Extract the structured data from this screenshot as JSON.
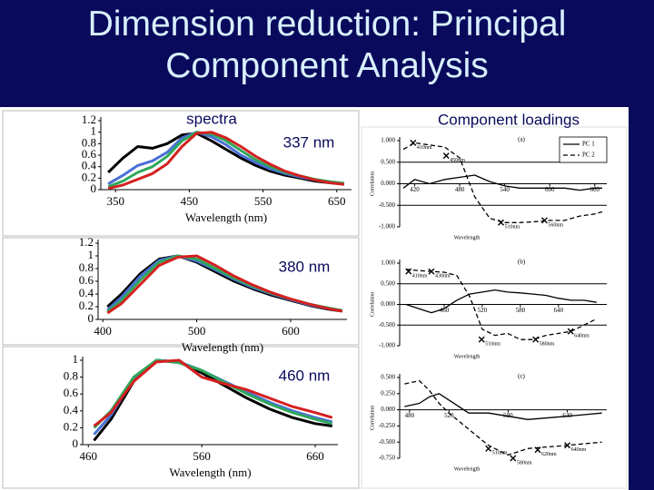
{
  "slide": {
    "title": "Dimension reduction: Principal Component Analysis",
    "labels": [
      "spectra",
      "337 nm",
      "380 nm",
      "460 nm",
      "Component loadings"
    ]
  },
  "chart_data": [
    {
      "type": "line",
      "x": [
        340,
        360,
        380,
        400,
        420,
        440,
        460,
        480,
        500,
        520,
        540,
        560,
        580,
        600,
        620,
        640,
        660
      ],
      "series": [
        {
          "color": "#000000",
          "values": [
            0.3,
            0.55,
            0.75,
            0.72,
            0.8,
            0.95,
            0.98,
            0.85,
            0.7,
            0.55,
            0.42,
            0.32,
            0.25,
            0.2,
            0.15,
            0.12,
            0.1
          ]
        },
        {
          "color": "#4a6fd6",
          "values": [
            0.1,
            0.25,
            0.42,
            0.5,
            0.65,
            0.9,
            1.0,
            0.92,
            0.78,
            0.6,
            0.47,
            0.36,
            0.28,
            0.22,
            0.17,
            0.13,
            0.1
          ]
        },
        {
          "color": "#2ea85a",
          "values": [
            0.05,
            0.15,
            0.3,
            0.4,
            0.58,
            0.85,
            1.0,
            0.97,
            0.85,
            0.68,
            0.52,
            0.4,
            0.3,
            0.24,
            0.18,
            0.14,
            0.11
          ]
        },
        {
          "color": "#d42020",
          "values": [
            0.02,
            0.08,
            0.18,
            0.28,
            0.45,
            0.75,
            0.98,
            1.0,
            0.9,
            0.75,
            0.58,
            0.44,
            0.32,
            0.24,
            0.17,
            0.12,
            0.09
          ]
        }
      ],
      "xlim": [
        330,
        670
      ],
      "ylim": [
        0,
        1.2
      ],
      "xticks": [
        350,
        450,
        550,
        650
      ],
      "yticks": [
        0,
        0.2,
        0.4,
        0.6,
        0.8,
        1,
        1.2
      ],
      "xlabel": "Wavelength (nm)"
    },
    {
      "type": "line",
      "x": [
        405,
        420,
        440,
        460,
        480,
        500,
        520,
        540,
        560,
        580,
        600,
        620,
        640,
        655
      ],
      "series": [
        {
          "color": "#000000",
          "values": [
            0.2,
            0.4,
            0.72,
            0.95,
            1.0,
            0.9,
            0.75,
            0.6,
            0.48,
            0.38,
            0.3,
            0.22,
            0.16,
            0.13
          ]
        },
        {
          "color": "#4a6fd6",
          "values": [
            0.15,
            0.35,
            0.68,
            0.93,
            1.0,
            0.92,
            0.78,
            0.63,
            0.5,
            0.4,
            0.31,
            0.23,
            0.17,
            0.14
          ]
        },
        {
          "color": "#2ea85a",
          "values": [
            0.12,
            0.3,
            0.62,
            0.9,
            1.0,
            0.95,
            0.8,
            0.65,
            0.52,
            0.41,
            0.32,
            0.24,
            0.18,
            0.14
          ]
        },
        {
          "color": "#d42020",
          "values": [
            0.1,
            0.25,
            0.55,
            0.85,
            0.98,
            1.0,
            0.85,
            0.68,
            0.54,
            0.42,
            0.32,
            0.24,
            0.17,
            0.13
          ]
        }
      ],
      "xlim": [
        395,
        660
      ],
      "ylim": [
        0,
        1.2
      ],
      "xticks": [
        400,
        500,
        600
      ],
      "yticks": [
        0,
        0.2,
        0.4,
        0.6,
        0.8,
        1,
        1.2
      ],
      "xlabel": "Wavelength (nm)"
    },
    {
      "type": "line",
      "x": [
        465,
        480,
        500,
        520,
        540,
        560,
        580,
        600,
        620,
        640,
        660,
        675
      ],
      "series": [
        {
          "color": "#000000",
          "values": [
            0.05,
            0.3,
            0.75,
            1.0,
            0.98,
            0.85,
            0.7,
            0.55,
            0.42,
            0.32,
            0.25,
            0.22
          ]
        },
        {
          "color": "#4a6fd6",
          "values": [
            0.12,
            0.35,
            0.78,
            1.0,
            0.98,
            0.88,
            0.75,
            0.62,
            0.5,
            0.4,
            0.32,
            0.27
          ]
        },
        {
          "color": "#2ea85a",
          "values": [
            0.2,
            0.4,
            0.8,
            1.0,
            0.97,
            0.88,
            0.74,
            0.6,
            0.48,
            0.38,
            0.3,
            0.25
          ]
        },
        {
          "color": "#d42020",
          "values": [
            0.22,
            0.38,
            0.75,
            0.98,
            1.0,
            0.8,
            0.72,
            0.65,
            0.55,
            0.45,
            0.38,
            0.32
          ]
        }
      ],
      "xlim": [
        455,
        680
      ],
      "ylim": [
        0,
        1
      ],
      "xticks": [
        460,
        560,
        660
      ],
      "yticks": [
        0,
        0.2,
        0.4,
        0.6,
        0.8,
        1
      ],
      "xlabel": "Wavelength (nm)"
    },
    {
      "type": "line",
      "title": "(a)",
      "x": [
        405,
        420,
        440,
        460,
        480,
        500,
        520,
        540,
        560,
        580,
        600,
        620,
        640,
        660,
        670
      ],
      "series": [
        {
          "name": "PC 1",
          "color": "#000000",
          "dash": "none",
          "values": [
            -0.1,
            0.1,
            0.0,
            0.1,
            0.15,
            0.2,
            0.05,
            -0.05,
            -0.1,
            -0.1,
            -0.1,
            -0.1,
            -0.15,
            -0.1,
            -0.1
          ]
        },
        {
          "name": "PC 2",
          "color": "#000000",
          "dash": "5 3",
          "values": [
            0.8,
            0.95,
            0.9,
            0.85,
            0.6,
            -0.3,
            -0.8,
            -0.9,
            -0.9,
            -0.88,
            -0.85,
            -0.85,
            -0.75,
            -0.7,
            -0.65
          ]
        }
      ],
      "xlim": [
        400,
        676
      ],
      "ylim": [
        -1,
        1
      ],
      "xticks": [
        420,
        480,
        540,
        600,
        660
      ],
      "yticks": [
        {
          "value": -1,
          "label": "-1.000"
        },
        {
          "value": -0.5,
          "label": "-0.500"
        },
        {
          "value": 0,
          "label": "0.000"
        },
        {
          "value": 0.5,
          "label": "0.500"
        },
        {
          "value": 1,
          "label": "1.000"
        }
      ],
      "reflines": [
        0.5,
        -0.5
      ],
      "xlabel": "Wavelength",
      "ylabel": "Correlation",
      "legend": true,
      "annotations": [
        {
          "text": "410nm",
          "x": 418,
          "y": 0.95
        },
        {
          "text": "450nm",
          "x": 462,
          "y": 0.65
        },
        {
          "text": "510nm",
          "x": 535,
          "y": -0.9
        },
        {
          "text": "560nm",
          "x": 593,
          "y": -0.85
        }
      ]
    },
    {
      "type": "line",
      "title": "(b)",
      "x": [
        400,
        420,
        440,
        460,
        480,
        500,
        520,
        540,
        560,
        580,
        600,
        620,
        640,
        660,
        680,
        700
      ],
      "series": [
        {
          "name": "PC 1",
          "color": "#000000",
          "dash": "none",
          "values": [
            0.0,
            -0.1,
            -0.2,
            -0.1,
            0.1,
            0.25,
            0.3,
            0.35,
            0.3,
            0.28,
            0.25,
            0.22,
            0.15,
            0.1,
            0.1,
            0.05
          ]
        },
        {
          "name": "PC 2",
          "color": "#000000",
          "dash": "5 3",
          "values": [
            0.85,
            0.82,
            0.8,
            0.78,
            0.7,
            0.2,
            -0.6,
            -0.75,
            -0.7,
            -0.85,
            -0.85,
            -0.75,
            -0.7,
            -0.65,
            -0.5,
            -0.35
          ]
        }
      ],
      "xlim": [
        390,
        716
      ],
      "ylim": [
        -1,
        1
      ],
      "xticks": [
        460,
        520,
        580,
        640
      ],
      "yticks": [
        {
          "value": -1,
          "label": "-1.000"
        },
        {
          "value": -0.5,
          "label": "-0.500"
        },
        {
          "value": 0,
          "label": "0.000"
        },
        {
          "value": 0.5,
          "label": "0.500"
        },
        {
          "value": 1,
          "label": "1.000"
        }
      ],
      "reflines": [
        0.5,
        -0.5
      ],
      "xlabel": "Wavelength",
      "ylabel": "Correlation",
      "legend": false,
      "annotations": [
        {
          "text": "410nm",
          "x": 404,
          "y": 0.8
        },
        {
          "text": "430nm",
          "x": 440,
          "y": 0.8
        },
        {
          "text": "510nm",
          "x": 519,
          "y": -0.85
        },
        {
          "text": "580nm",
          "x": 604,
          "y": -0.85
        },
        {
          "text": "640nm",
          "x": 659,
          "y": -0.65
        }
      ]
    },
    {
      "type": "line",
      "title": "(c)",
      "x": [
        475,
        490,
        500,
        510,
        520,
        540,
        560,
        580,
        600,
        640,
        675
      ],
      "series": [
        {
          "name": "PC 1",
          "color": "#000000",
          "dash": "none",
          "values": [
            0.05,
            0.1,
            0.2,
            0.25,
            0.15,
            -0.05,
            -0.05,
            -0.1,
            -0.15,
            -0.1,
            -0.05
          ]
        },
        {
          "name": "PC 2",
          "color": "#000000",
          "dash": "5 3",
          "values": [
            0.4,
            0.45,
            0.3,
            0.1,
            -0.05,
            -0.3,
            -0.55,
            -0.7,
            -0.6,
            -0.55,
            -0.5
          ]
        }
      ],
      "xlim": [
        470,
        680
      ],
      "ylim": [
        -0.75,
        0.5
      ],
      "xticks": [
        480,
        520,
        580,
        640
      ],
      "yticks": [
        {
          "value": -0.75,
          "label": "-0.750"
        },
        {
          "value": -0.5,
          "label": "-0.500"
        },
        {
          "value": -0.25,
          "label": "-0.250"
        },
        {
          "value": 0,
          "label": "0.000"
        },
        {
          "value": 0.25,
          "label": "0.250"
        },
        {
          "value": 0.5,
          "label": "0.500"
        }
      ],
      "reflines": [],
      "xlabel": "Wavelength",
      "ylabel": "Correlation",
      "legend": false,
      "annotations": [
        {
          "text": "510nm",
          "x": 560,
          "y": -0.6
        },
        {
          "text": "580nm",
          "x": 585,
          "y": -0.75
        },
        {
          "text": "620nm",
          "x": 610,
          "y": -0.62
        },
        {
          "text": "640nm",
          "x": 640,
          "y": -0.55
        }
      ]
    }
  ]
}
